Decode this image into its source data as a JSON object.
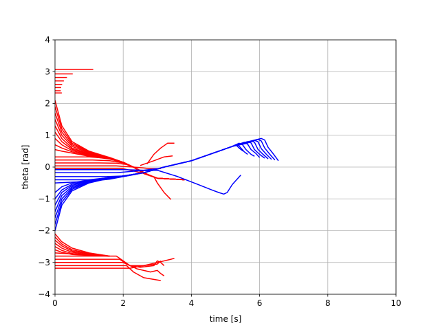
{
  "chart_data": {
    "type": "line",
    "title": "",
    "xlabel": "time [s]",
    "ylabel": "theta [rad]",
    "xlim": [
      0,
      10
    ],
    "ylim": [
      -4,
      4
    ],
    "x_ticks": [
      0,
      2,
      4,
      6,
      8,
      10
    ],
    "y_ticks": [
      -4,
      -3,
      -2,
      -1,
      0,
      1,
      2,
      3,
      4
    ],
    "grid": true,
    "legend": "none",
    "colors": {
      "red": "#ff0000",
      "blue": "#0000ff",
      "grid": "#b0b0b0"
    },
    "series": [
      {
        "color": "#ff0000",
        "x": [
          0,
          1.12
        ],
        "y": [
          3.07,
          3.07
        ]
      },
      {
        "color": "#ff0000",
        "x": [
          0,
          0.52
        ],
        "y": [
          2.93,
          2.93
        ]
      },
      {
        "color": "#ff0000",
        "x": [
          0,
          0.35
        ],
        "y": [
          2.82,
          2.82
        ]
      },
      {
        "color": "#ff0000",
        "x": [
          0,
          0.26
        ],
        "y": [
          2.71,
          2.71
        ]
      },
      {
        "color": "#ff0000",
        "x": [
          0,
          0.21
        ],
        "y": [
          2.6,
          2.6
        ]
      },
      {
        "color": "#ff0000",
        "x": [
          0,
          0.18
        ],
        "y": [
          2.5,
          2.5
        ]
      },
      {
        "color": "#ff0000",
        "x": [
          0,
          0.17
        ],
        "y": [
          2.4,
          2.4
        ]
      },
      {
        "color": "#ff0000",
        "x": [
          0,
          0.2
        ],
        "y": [
          2.33,
          2.33
        ]
      },
      {
        "color": "#ff0000",
        "x": [
          0,
          0.2,
          0.5,
          1.0,
          1.6,
          2.0,
          2.3,
          2.6,
          3.0,
          3.8
        ],
        "y": [
          2.1,
          1.3,
          0.8,
          0.5,
          0.3,
          0.15,
          0.0,
          -0.2,
          -0.35,
          -0.4
        ]
      },
      {
        "color": "#ff0000",
        "x": [
          0,
          0.2,
          0.5,
          1.0,
          1.6,
          2.0,
          2.3,
          2.6,
          3.0,
          3.8
        ],
        "y": [
          1.9,
          1.2,
          0.75,
          0.48,
          0.3,
          0.15,
          0.0,
          -0.2,
          -0.35,
          -0.4
        ]
      },
      {
        "color": "#ff0000",
        "x": [
          0,
          0.2,
          0.5,
          1.0,
          1.6,
          2.0,
          2.3,
          2.6,
          3.0,
          3.8
        ],
        "y": [
          1.7,
          1.1,
          0.7,
          0.46,
          0.29,
          0.15,
          0.0,
          -0.2,
          -0.35,
          -0.4
        ]
      },
      {
        "color": "#ff0000",
        "x": [
          0,
          0.2,
          0.5,
          1.0,
          1.6,
          2.0,
          2.3,
          2.6,
          3.0,
          3.8
        ],
        "y": [
          1.5,
          1.0,
          0.65,
          0.44,
          0.28,
          0.15,
          0.0,
          -0.2,
          -0.35,
          -0.4
        ]
      },
      {
        "color": "#ff0000",
        "x": [
          0,
          0.2,
          0.5,
          1.0,
          1.6,
          2.0,
          2.3,
          2.6,
          3.0,
          3.8
        ],
        "y": [
          1.3,
          0.9,
          0.6,
          0.42,
          0.28,
          0.15,
          0.0,
          -0.2,
          -0.35,
          -0.4
        ]
      },
      {
        "color": "#ff0000",
        "x": [
          0,
          0.2,
          0.5,
          1.0,
          1.6,
          2.0,
          2.3,
          2.6,
          3.0,
          3.8
        ],
        "y": [
          1.1,
          0.8,
          0.56,
          0.4,
          0.27,
          0.15,
          0.0,
          -0.2,
          -0.35,
          -0.4
        ]
      },
      {
        "color": "#ff0000",
        "x": [
          0,
          0.2,
          0.5,
          1.0,
          1.6,
          2.0,
          2.3,
          2.6,
          3.0,
          3.8
        ],
        "y": [
          0.9,
          0.7,
          0.52,
          0.38,
          0.26,
          0.15,
          0.0,
          -0.2,
          -0.35,
          -0.4
        ]
      },
      {
        "color": "#ff0000",
        "x": [
          0,
          0.2,
          0.5,
          1.0,
          1.6,
          2.0,
          2.3,
          2.6,
          3.0,
          3.8
        ],
        "y": [
          0.7,
          0.6,
          0.48,
          0.36,
          0.26,
          0.15,
          0.0,
          -0.2,
          -0.35,
          -0.4
        ]
      },
      {
        "color": "#ff0000",
        "x": [
          0,
          0.2,
          0.5,
          1.0,
          1.6,
          2.0,
          2.3,
          2.6,
          3.0,
          3.8
        ],
        "y": [
          0.55,
          0.5,
          0.44,
          0.34,
          0.25,
          0.15,
          0.0,
          -0.2,
          -0.35,
          -0.4
        ]
      },
      {
        "color": "#ff0000",
        "x": [
          0,
          1.0,
          1.5,
          2.0,
          2.3,
          2.6,
          3.0,
          3.8
        ],
        "y": [
          0.32,
          0.32,
          0.28,
          0.15,
          0.0,
          -0.2,
          -0.35,
          -0.4
        ]
      },
      {
        "color": "#ff0000",
        "x": [
          0,
          1.1,
          1.6,
          2.0,
          2.3,
          2.6,
          3.0,
          3.8
        ],
        "y": [
          0.22,
          0.22,
          0.2,
          0.13,
          0.0,
          -0.2,
          -0.35,
          -0.4
        ]
      },
      {
        "color": "#ff0000",
        "x": [
          0,
          1.3,
          1.8,
          2.1,
          2.4,
          2.7,
          3.0,
          3.8
        ],
        "y": [
          0.13,
          0.13,
          0.12,
          0.08,
          -0.05,
          -0.22,
          -0.35,
          -0.4
        ]
      },
      {
        "color": "#ff0000",
        "x": [
          0,
          1.8,
          2.3,
          2.8,
          3.1
        ],
        "y": [
          0.04,
          0.04,
          0.0,
          -0.05,
          -0.05
        ]
      },
      {
        "color": "#ff0000",
        "x": [
          0,
          2.0,
          2.6,
          3.0,
          3.8
        ],
        "y": [
          -0.05,
          -0.05,
          -0.2,
          -0.35,
          -0.4
        ]
      },
      {
        "color": "#ff0000",
        "x": [
          2.7,
          2.9,
          3.1,
          3.3,
          3.5
        ],
        "y": [
          0.1,
          0.4,
          0.6,
          0.75,
          0.75
        ]
      },
      {
        "color": "#ff0000",
        "x": [
          2.5,
          2.9,
          3.2,
          3.45
        ],
        "y": [
          0.05,
          0.2,
          0.32,
          0.35
        ]
      },
      {
        "color": "#ff0000",
        "x": [
          2.9,
          3.0,
          3.2,
          3.4
        ],
        "y": [
          -0.3,
          -0.5,
          -0.8,
          -1.02
        ]
      },
      {
        "color": "#ff0000",
        "x": [
          0,
          0.2,
          0.5,
          1.0,
          1.6
        ],
        "y": [
          -2.1,
          -2.35,
          -2.55,
          -2.7,
          -2.8
        ]
      },
      {
        "color": "#ff0000",
        "x": [
          0,
          0.2,
          0.5,
          1.0,
          1.6
        ],
        "y": [
          -2.2,
          -2.42,
          -2.6,
          -2.72,
          -2.8
        ]
      },
      {
        "color": "#ff0000",
        "x": [
          0,
          0.2,
          0.5,
          1.0,
          1.6
        ],
        "y": [
          -2.3,
          -2.48,
          -2.64,
          -2.74,
          -2.8
        ]
      },
      {
        "color": "#ff0000",
        "x": [
          0,
          0.2,
          0.5,
          1.0,
          1.6
        ],
        "y": [
          -2.4,
          -2.55,
          -2.68,
          -2.76,
          -2.8
        ]
      },
      {
        "color": "#ff0000",
        "x": [
          0,
          0.2,
          0.5,
          1.0,
          1.6
        ],
        "y": [
          -2.5,
          -2.62,
          -2.72,
          -2.77,
          -2.8
        ]
      },
      {
        "color": "#ff0000",
        "x": [
          0,
          0.2,
          0.5,
          1.0,
          1.6
        ],
        "y": [
          -2.6,
          -2.68,
          -2.75,
          -2.78,
          -2.8
        ]
      },
      {
        "color": "#ff0000",
        "x": [
          0,
          1.6
        ],
        "y": [
          -2.7,
          -2.8
        ]
      },
      {
        "color": "#ff0000",
        "x": [
          0,
          1.8,
          2.0,
          2.2,
          2.6,
          3.0,
          3.4,
          3.5
        ],
        "y": [
          -2.8,
          -2.8,
          -2.95,
          -3.1,
          -3.1,
          -3.0,
          -2.9,
          -2.87
        ]
      },
      {
        "color": "#ff0000",
        "x": [
          0,
          1.9,
          2.1,
          2.4,
          2.8,
          3.0,
          3.1,
          3.2
        ],
        "y": [
          -2.9,
          -2.9,
          -3.05,
          -3.2,
          -3.3,
          -3.25,
          -3.35,
          -3.42
        ]
      },
      {
        "color": "#ff0000",
        "x": [
          0,
          2.0,
          2.2,
          2.5,
          2.9,
          3.0,
          3.1,
          3.2
        ],
        "y": [
          -3.0,
          -3.0,
          -3.1,
          -3.15,
          -3.1,
          -2.95,
          -3.0,
          -3.1
        ]
      },
      {
        "color": "#ff0000",
        "x": [
          0,
          2.1,
          2.3,
          2.6,
          3.0,
          3.1
        ],
        "y": [
          -3.1,
          -3.1,
          -3.3,
          -3.48,
          -3.55,
          -3.57
        ]
      },
      {
        "color": "#ff0000",
        "x": [
          0,
          2.2,
          2.6,
          3.0,
          3.1
        ],
        "y": [
          -3.18,
          -3.18,
          -3.1,
          -3.05,
          -2.95
        ]
      },
      {
        "color": "#0000ff",
        "x": [
          0,
          0.2,
          0.5,
          1.0,
          1.6,
          2.0,
          2.6,
          3.2,
          4.0,
          4.8,
          5.2,
          5.6,
          5.95,
          6.05,
          6.15,
          6.3,
          6.45
        ],
        "y": [
          -2.0,
          -1.2,
          -0.75,
          -0.5,
          -0.35,
          -0.28,
          -0.18,
          0.0,
          0.2,
          0.5,
          0.65,
          0.75,
          0.87,
          0.82,
          0.6,
          0.4,
          0.22
        ]
      },
      {
        "color": "#0000ff",
        "x": [
          0,
          0.2,
          0.5,
          1.0,
          1.6,
          2.0,
          2.6,
          3.2,
          4.0,
          4.8,
          5.2,
          5.6,
          6.05,
          6.15,
          6.25,
          6.4,
          6.55
        ],
        "y": [
          -1.8,
          -1.1,
          -0.7,
          -0.48,
          -0.35,
          -0.28,
          -0.18,
          0.0,
          0.2,
          0.5,
          0.65,
          0.78,
          0.9,
          0.85,
          0.62,
          0.42,
          0.2
        ]
      },
      {
        "color": "#0000ff",
        "x": [
          0,
          0.2,
          0.5,
          1.0,
          1.6,
          2.0,
          2.6,
          3.2,
          4.0,
          4.8,
          5.2,
          5.6,
          5.85,
          5.95,
          6.05,
          6.2,
          6.35
        ],
        "y": [
          -1.6,
          -1.0,
          -0.66,
          -0.46,
          -0.34,
          -0.28,
          -0.18,
          0.0,
          0.2,
          0.5,
          0.65,
          0.74,
          0.84,
          0.8,
          0.58,
          0.4,
          0.24
        ]
      },
      {
        "color": "#0000ff",
        "x": [
          0,
          0.2,
          0.5,
          1.0,
          1.6,
          2.0,
          2.6,
          3.2,
          4.0,
          4.8,
          5.2,
          5.75,
          5.85,
          5.95,
          6.1,
          6.25
        ],
        "y": [
          -1.4,
          -0.9,
          -0.62,
          -0.44,
          -0.34,
          -0.28,
          -0.18,
          0.0,
          0.2,
          0.5,
          0.65,
          0.82,
          0.78,
          0.56,
          0.4,
          0.26
        ]
      },
      {
        "color": "#0000ff",
        "x": [
          0,
          0.2,
          0.5,
          1.0,
          1.6,
          2.0,
          2.6,
          3.2,
          4.0,
          4.8,
          5.2,
          5.65,
          5.75,
          5.85,
          6.0,
          6.15
        ],
        "y": [
          -1.2,
          -0.8,
          -0.58,
          -0.42,
          -0.33,
          -0.28,
          -0.18,
          0.0,
          0.2,
          0.5,
          0.65,
          0.8,
          0.76,
          0.55,
          0.4,
          0.28
        ]
      },
      {
        "color": "#0000ff",
        "x": [
          0,
          0.2,
          0.5,
          1.0,
          1.6,
          2.0,
          2.6,
          3.2,
          4.0,
          4.8,
          5.2,
          5.55,
          5.65,
          5.75,
          5.9,
          6.0
        ],
        "y": [
          -1.0,
          -0.72,
          -0.54,
          -0.41,
          -0.33,
          -0.28,
          -0.18,
          0.0,
          0.2,
          0.5,
          0.65,
          0.78,
          0.72,
          0.55,
          0.42,
          0.3
        ]
      },
      {
        "color": "#0000ff",
        "x": [
          0,
          0.2,
          0.5,
          1.0,
          1.6,
          2.0,
          2.6,
          3.2,
          4.0,
          4.8,
          5.2,
          5.4,
          5.5,
          5.6,
          5.75,
          5.85
        ],
        "y": [
          -0.8,
          -0.62,
          -0.5,
          -0.4,
          -0.33,
          -0.28,
          -0.18,
          0.0,
          0.2,
          0.5,
          0.65,
          0.75,
          0.7,
          0.55,
          0.4,
          0.34
        ]
      },
      {
        "color": "#0000ff",
        "x": [
          0,
          1.0,
          1.6,
          2.0,
          2.6,
          3.2,
          4.0,
          4.8,
          5.2,
          5.35,
          5.45,
          5.55,
          5.65
        ],
        "y": [
          -0.5,
          -0.45,
          -0.38,
          -0.3,
          -0.18,
          0.0,
          0.2,
          0.5,
          0.65,
          0.72,
          0.6,
          0.48,
          0.4
        ]
      },
      {
        "color": "#0000ff",
        "x": [
          0,
          1.3,
          2.0,
          2.6,
          3.2,
          4.0,
          4.8,
          5.2,
          5.3,
          5.42,
          5.52
        ],
        "y": [
          -0.4,
          -0.4,
          -0.3,
          -0.18,
          0.0,
          0.2,
          0.5,
          0.65,
          0.7,
          0.58,
          0.5
        ]
      },
      {
        "color": "#0000ff",
        "x": [
          0,
          1.5,
          2.0,
          2.6,
          3.2,
          4.0,
          4.8,
          5.2
        ],
        "y": [
          -0.3,
          -0.3,
          -0.28,
          -0.18,
          0.0,
          0.2,
          0.5,
          0.65
        ]
      },
      {
        "color": "#0000ff",
        "x": [
          0,
          1.8,
          2.4,
          3.0,
          3.6,
          4.2,
          4.6,
          4.8,
          4.95,
          5.05,
          5.2,
          5.45
        ],
        "y": [
          -0.18,
          -0.18,
          -0.12,
          -0.1,
          -0.3,
          -0.55,
          -0.72,
          -0.8,
          -0.85,
          -0.8,
          -0.55,
          -0.25
        ]
      },
      {
        "color": "#0000ff",
        "x": [
          0,
          2.0,
          2.6,
          3.0
        ],
        "y": [
          -0.08,
          -0.08,
          -0.1,
          -0.05
        ]
      }
    ]
  }
}
